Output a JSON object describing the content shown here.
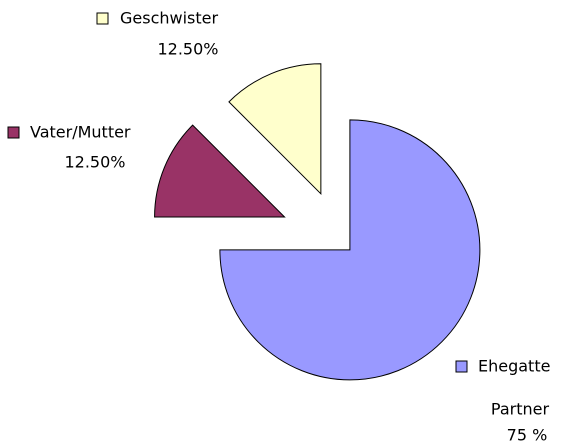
{
  "chart_data": {
    "type": "pie",
    "categories": [
      "Ehegatte",
      "Vater/Mutter",
      "Geschwister"
    ],
    "values": [
      75,
      12.5,
      12.5
    ],
    "value_labels": [
      "75 %",
      "12.50%",
      "12.50%"
    ],
    "colors": [
      "#9999ff",
      "#993366",
      "#ffffcc"
    ],
    "annotations": [
      {
        "text": "Partner"
      }
    ],
    "exploded": true
  }
}
